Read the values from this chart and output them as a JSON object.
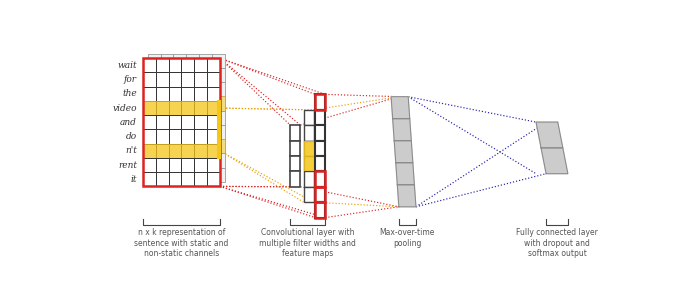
{
  "bg_color": "#ffffff",
  "words": [
    "wait",
    "for",
    "the",
    "video",
    "and",
    "do",
    "n't",
    "rent",
    "it"
  ],
  "n_words": 9,
  "n_cols": 6,
  "label1": "n x k representation of\nsentence with static and\nnon-static channels",
  "label2": "Convolutional layer with\nmultiple filter widths and\nfeature maps",
  "label3": "Max-over-time\npooling",
  "label4": "Fully connected layer\nwith dropout and\nsoftmax output",
  "red_color": "#dd2222",
  "yellow_color": "#e8a000",
  "gray_color": "#999999",
  "dark_gray": "#555555",
  "blue_color": "#2222aa",
  "light_red": "#ee6666"
}
